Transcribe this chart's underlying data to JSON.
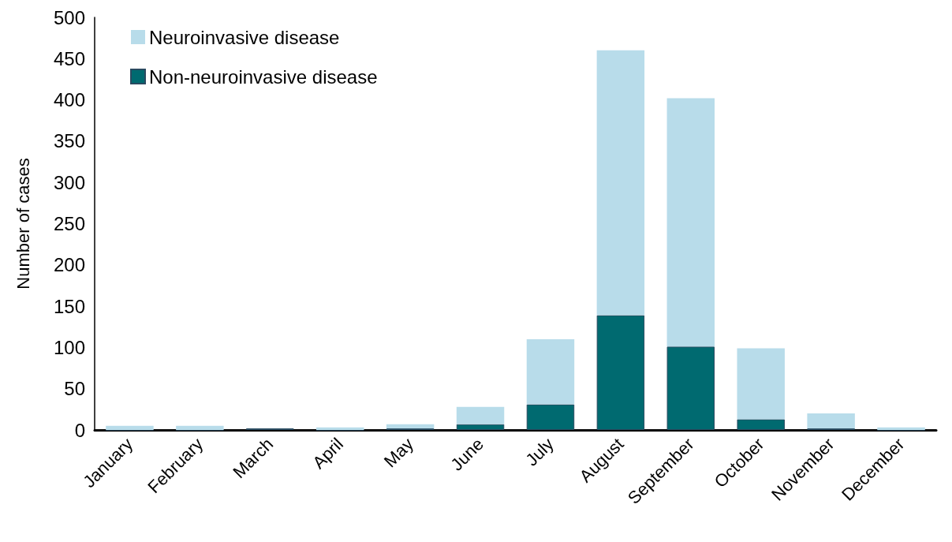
{
  "chart_data": {
    "type": "bar",
    "ylabel": "Number of cases",
    "stacked": true,
    "categories": [
      "January",
      "February",
      "March",
      "April",
      "May",
      "June",
      "July",
      "August",
      "September",
      "October",
      "November",
      "December"
    ],
    "series": [
      {
        "name": "Non-neuroinvasive disease",
        "color": "#006a70",
        "values": [
          0,
          0,
          2,
          0,
          2,
          7,
          31,
          139,
          101,
          13,
          2,
          0
        ]
      },
      {
        "name": "Neuroinvasive disease",
        "color": "#b8dcea",
        "values": [
          5,
          5,
          0,
          3,
          5,
          21,
          79,
          321,
          301,
          86,
          18,
          3
        ]
      }
    ],
    "ylim": [
      0,
      500
    ],
    "yticks": [
      0,
      50,
      100,
      150,
      200,
      250,
      300,
      350,
      400,
      450,
      500
    ],
    "grid": false,
    "legend": "top left"
  }
}
